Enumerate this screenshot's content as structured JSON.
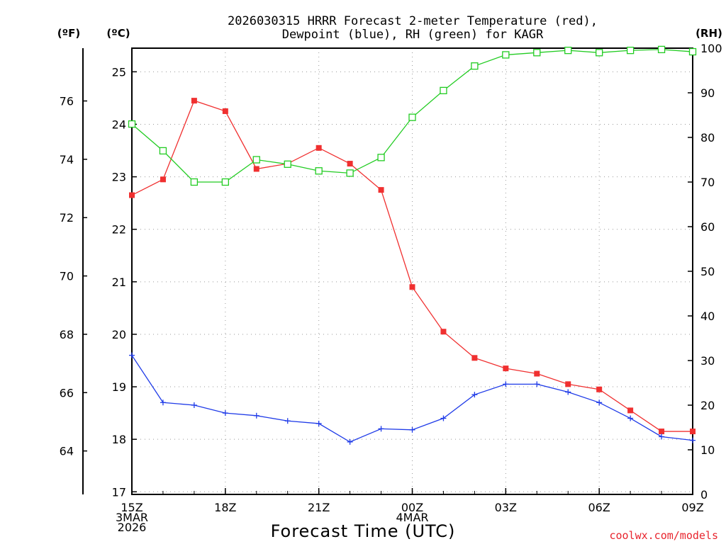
{
  "colors": {
    "temperature": "#f03030",
    "dewpoint": "#1f3be8",
    "rh": "#22cc22",
    "credit": "#e8242d"
  },
  "chart_data": {
    "type": "line",
    "title_lines": [
      "2026030315 HRRR Forecast 2-meter Temperature (red),",
      "Dewpoint (blue), RH (green) for KAGR"
    ],
    "xlabel": "Forecast Time (UTC)",
    "credit": "coolwx.com/models",
    "left_axis_label": "(ºF)",
    "second_axis_label": "(ºC)",
    "right_axis_label": "(RH)",
    "x_hours": [
      0,
      1,
      2,
      3,
      4,
      5,
      6,
      7,
      8,
      9,
      10,
      11,
      12,
      13,
      14,
      15,
      16,
      17,
      18
    ],
    "x_tick_labels": [
      {
        "hour": 0,
        "lines": [
          "15Z",
          "3MAR",
          "2026"
        ]
      },
      {
        "hour": 3,
        "lines": [
          "18Z"
        ]
      },
      {
        "hour": 6,
        "lines": [
          "21Z"
        ]
      },
      {
        "hour": 9,
        "lines": [
          "00Z",
          "4MAR"
        ]
      },
      {
        "hour": 12,
        "lines": [
          "03Z"
        ]
      },
      {
        "hour": 15,
        "lines": [
          "06Z"
        ]
      },
      {
        "hour": 18,
        "lines": [
          "09Z"
        ]
      }
    ],
    "celsius_range": [
      16.95,
      25.45
    ],
    "celsius_ticks": [
      17,
      18,
      19,
      20,
      21,
      22,
      23,
      24,
      25
    ],
    "fahrenheit_ticks": [
      64,
      66,
      68,
      70,
      72,
      74,
      76
    ],
    "rh_range": [
      0,
      100
    ],
    "rh_ticks": [
      0,
      10,
      20,
      30,
      40,
      50,
      60,
      70,
      80,
      90,
      100
    ],
    "grid": true,
    "series": [
      {
        "name": "Temperature (red)",
        "unit": "C",
        "marker": "filled-square",
        "values": [
          22.65,
          22.95,
          24.45,
          24.25,
          23.15,
          23.25,
          23.55,
          23.25,
          22.75,
          20.9,
          20.05,
          19.55,
          19.35,
          19.25,
          19.05,
          18.95,
          18.55,
          18.15,
          18.15
        ]
      },
      {
        "name": "Dewpoint (blue)",
        "unit": "C",
        "marker": "plus",
        "values": [
          19.6,
          18.7,
          18.65,
          18.5,
          18.45,
          18.35,
          18.3,
          17.95,
          18.2,
          18.18,
          18.4,
          18.85,
          19.05,
          19.05,
          18.9,
          18.7,
          18.4,
          18.05,
          17.98
        ]
      },
      {
        "name": "RH (green)",
        "unit": "%",
        "marker": "open-square",
        "values": [
          83,
          77,
          70,
          70,
          75,
          74,
          72.5,
          72,
          75.5,
          84.5,
          90.5,
          96,
          98.5,
          99,
          99.5,
          99,
          99.5,
          99.7,
          99.2
        ]
      }
    ]
  }
}
